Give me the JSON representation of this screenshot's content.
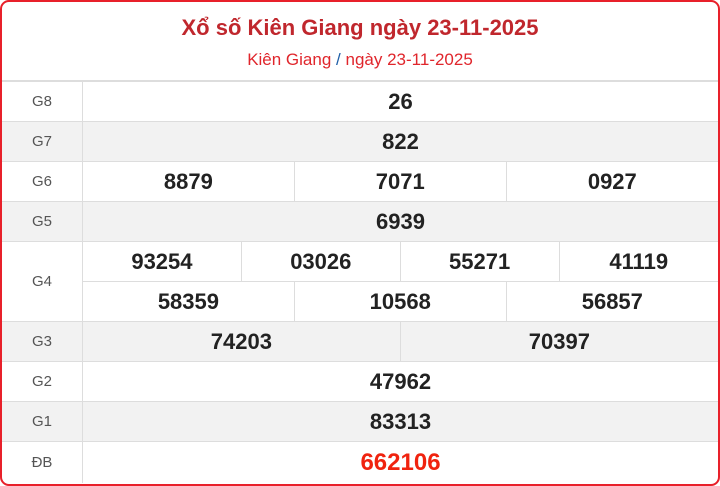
{
  "header": {
    "title": "Xổ số Kiên Giang ngày 23-11-2025",
    "breadcrumb_province": "Kiên Giang",
    "breadcrumb_sep": "/",
    "breadcrumb_date": "ngày 23-11-2025"
  },
  "prizes": {
    "g8": {
      "label": "G8",
      "values": [
        "26"
      ]
    },
    "g7": {
      "label": "G7",
      "values": [
        "822"
      ]
    },
    "g6": {
      "label": "G6",
      "values": [
        "8879",
        "7071",
        "0927"
      ]
    },
    "g5": {
      "label": "G5",
      "values": [
        "6939"
      ]
    },
    "g4": {
      "label": "G4",
      "values": [
        "93254",
        "03026",
        "55271",
        "41119",
        "58359",
        "10568",
        "56857"
      ]
    },
    "g3": {
      "label": "G3",
      "values": [
        "74203",
        "70397"
      ]
    },
    "g2": {
      "label": "G2",
      "values": [
        "47962"
      ]
    },
    "g1": {
      "label": "G1",
      "values": [
        "83313"
      ]
    },
    "db": {
      "label": "ĐB",
      "values": [
        "662106"
      ]
    }
  },
  "colors": {
    "accent": "#e8202a",
    "title": "#c0272d",
    "special": "#f0230f"
  }
}
